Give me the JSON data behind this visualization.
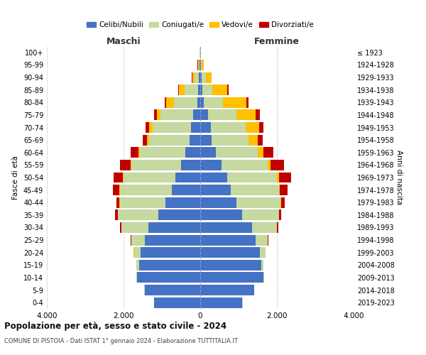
{
  "age_groups": [
    "0-4",
    "5-9",
    "10-14",
    "15-19",
    "20-24",
    "25-29",
    "30-34",
    "35-39",
    "40-44",
    "45-49",
    "50-54",
    "55-59",
    "60-64",
    "65-69",
    "70-74",
    "75-79",
    "80-84",
    "85-89",
    "90-94",
    "95-99",
    "100+"
  ],
  "birth_years": [
    "2019-2023",
    "2014-2018",
    "2009-2013",
    "2004-2008",
    "1999-2003",
    "1994-1998",
    "1989-1993",
    "1984-1988",
    "1979-1983",
    "1974-1978",
    "1969-1973",
    "1964-1968",
    "1959-1963",
    "1954-1958",
    "1949-1953",
    "1944-1948",
    "1939-1943",
    "1934-1938",
    "1929-1933",
    "1924-1928",
    "≤ 1923"
  ],
  "male": {
    "celibi": [
      1200,
      1450,
      1650,
      1600,
      1550,
      1450,
      1350,
      1100,
      900,
      750,
      650,
      500,
      380,
      280,
      250,
      180,
      80,
      50,
      30,
      10,
      5
    ],
    "coniugati": [
      5,
      10,
      20,
      60,
      180,
      350,
      700,
      1050,
      1200,
      1350,
      1350,
      1300,
      1200,
      1050,
      1000,
      850,
      600,
      350,
      120,
      30,
      5
    ],
    "vedovi": [
      1,
      2,
      2,
      2,
      2,
      5,
      5,
      5,
      5,
      5,
      10,
      20,
      30,
      50,
      80,
      100,
      200,
      150,
      60,
      20,
      2
    ],
    "divorziati": [
      1,
      2,
      3,
      5,
      8,
      15,
      30,
      60,
      80,
      180,
      250,
      280,
      200,
      120,
      100,
      80,
      50,
      30,
      10,
      5,
      1
    ]
  },
  "female": {
    "nubili": [
      1100,
      1400,
      1650,
      1600,
      1550,
      1450,
      1350,
      1100,
      950,
      800,
      700,
      550,
      400,
      300,
      280,
      200,
      100,
      60,
      40,
      15,
      5
    ],
    "coniugate": [
      5,
      8,
      15,
      50,
      150,
      300,
      650,
      950,
      1150,
      1250,
      1300,
      1200,
      1100,
      950,
      900,
      750,
      500,
      250,
      100,
      30,
      5
    ],
    "vedove": [
      1,
      1,
      2,
      2,
      3,
      5,
      8,
      10,
      20,
      30,
      50,
      80,
      150,
      250,
      350,
      500,
      600,
      400,
      150,
      50,
      3
    ],
    "divorziate": [
      1,
      2,
      3,
      5,
      8,
      15,
      30,
      60,
      80,
      200,
      320,
      350,
      250,
      130,
      120,
      100,
      60,
      30,
      10,
      5,
      1
    ]
  },
  "colors": {
    "celibi": "#4472c4",
    "coniugati": "#c5d9a0",
    "vedovi": "#ffc000",
    "divorziati": "#c00000"
  },
  "legend_labels": [
    "Celibi/Nubili",
    "Coniugati/e",
    "Vedovi/e",
    "Divorziati/e"
  ],
  "title": "Popolazione per età, sesso e stato civile - 2024",
  "subtitle": "COMUNE DI PISTOIA - Dati ISTAT 1° gennaio 2024 - Elaborazione TUTTITALIA.IT",
  "xlabel_left": "Maschi",
  "xlabel_right": "Femmine",
  "ylabel_left": "Fasce di età",
  "ylabel_right": "Anni di nascita",
  "xlim": 4000,
  "background_color": "#ffffff",
  "grid_color": "#d0d0d0"
}
